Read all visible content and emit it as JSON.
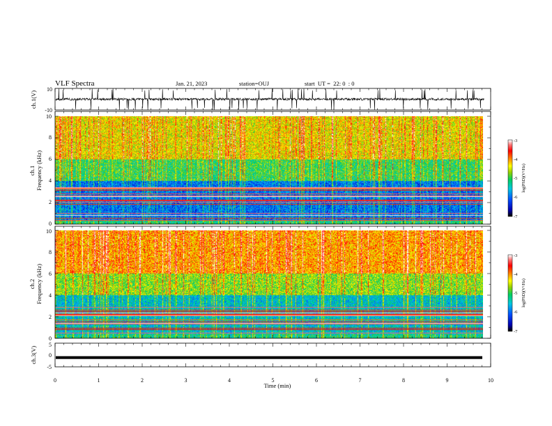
{
  "header": {
    "title": "VLF Spectra",
    "date": "Jan. 21, 2023",
    "station": "station=OUJ",
    "start": "start  UT =  22: 0  : 0"
  },
  "chart_data": [
    {
      "type": "line",
      "panel": "ch1-waveform",
      "ylabel": "ch.1(V)",
      "ylim": [
        -10,
        10
      ],
      "y_ticks": [
        "10",
        "-10"
      ],
      "baseline": 0,
      "xlim": [
        0,
        10
      ]
    },
    {
      "type": "heatmap",
      "panel": "ch1-spectrogram",
      "ylabel_1": "ch.1",
      "ylabel_2": "Frequency (kHz)",
      "ylim": [
        0,
        10
      ],
      "y_ticks": [
        "0",
        "2",
        "4",
        "6",
        "8",
        "10"
      ],
      "xlim": [
        0,
        9.85
      ],
      "colorbar": {
        "label": "log(PSD)(V²/Hz)",
        "range": [
          -7,
          -3
        ],
        "ticks": [
          "-3",
          "-4",
          "-5",
          "-6",
          "-7"
        ]
      }
    },
    {
      "type": "heatmap",
      "panel": "ch2-spectrogram",
      "ylabel_1": "ch.2",
      "ylabel_2": "Frequency (kHz)",
      "ylim": [
        0,
        10
      ],
      "y_ticks": [
        "0",
        "2",
        "4",
        "6",
        "8",
        "10"
      ],
      "xlim": [
        0,
        9.85
      ],
      "colorbar": {
        "label": "log(PSD)(V²/Hz)",
        "range": [
          -7,
          -3
        ],
        "ticks": [
          "-3",
          "-4",
          "-5",
          "-6",
          "-7"
        ]
      }
    },
    {
      "type": "line",
      "panel": "ch3-waveform",
      "ylabel": "ch.3(V)",
      "ylim": [
        -5,
        5
      ],
      "y_ticks": [
        "5",
        "0",
        "-5"
      ],
      "baseline": -1.1,
      "xlim": [
        0,
        10
      ],
      "xlabel": "Time (min)",
      "x_ticks": [
        "0",
        "1",
        "2",
        "3",
        "4",
        "5",
        "6",
        "7",
        "8",
        "9",
        "10"
      ]
    }
  ],
  "colors": {
    "waveform": "#000000",
    "colormap": [
      "#000000",
      "#0000b0",
      "#0050ff",
      "#00c8e0",
      "#00d060",
      "#9ad000",
      "#ffff00",
      "#ff8000",
      "#ff0000",
      "#ffffff"
    ]
  }
}
